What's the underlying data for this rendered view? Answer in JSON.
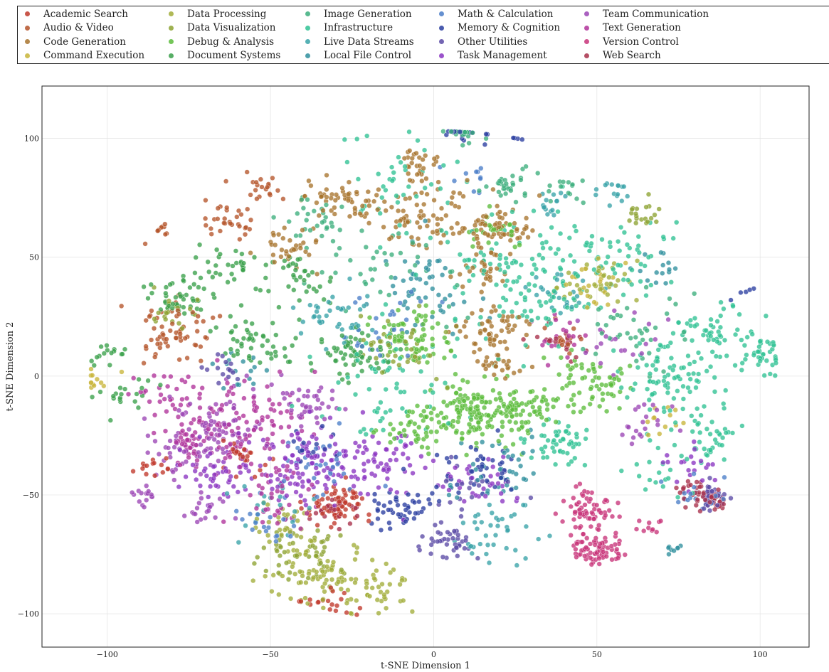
{
  "chart_data": {
    "type": "scatter",
    "title": "",
    "xlabel": "t-SNE Dimension 1",
    "ylabel": "t-SNE Dimension 2",
    "xlim": [
      -120,
      115
    ],
    "ylim": [
      -114,
      122
    ],
    "xticks": [
      -100,
      -50,
      0,
      50,
      100
    ],
    "yticks": [
      -100,
      -50,
      0,
      50,
      100
    ],
    "grid": true,
    "legend_position": "top",
    "series": [
      {
        "name": "Academic Search",
        "color": "#c0392b",
        "clusters": [
          {
            "x": -30,
            "y": -55,
            "s": 5,
            "n": 70
          },
          {
            "x": -58,
            "y": -35,
            "s": 4,
            "n": 25
          },
          {
            "x": -33,
            "y": -97,
            "s": 4,
            "n": 20
          },
          {
            "x": -85,
            "y": -38,
            "s": 3,
            "n": 15
          }
        ]
      },
      {
        "name": "Audio & Video",
        "color": "#b5542a",
        "clusters": [
          {
            "x": -78,
            "y": 18,
            "s": 6,
            "n": 60
          },
          {
            "x": -63,
            "y": 65,
            "s": 4,
            "n": 30
          },
          {
            "x": -52,
            "y": 78,
            "s": 3,
            "n": 20
          },
          {
            "x": -85,
            "y": 62,
            "s": 2,
            "n": 10
          },
          {
            "x": 40,
            "y": 15,
            "s": 3,
            "n": 15
          }
        ]
      },
      {
        "name": "Code Generation",
        "color": "#a8742e",
        "clusters": [
          {
            "x": -5,
            "y": 68,
            "s": 7,
            "n": 80
          },
          {
            "x": 20,
            "y": 62,
            "s": 5,
            "n": 60
          },
          {
            "x": 20,
            "y": 18,
            "s": 6,
            "n": 60
          },
          {
            "x": -5,
            "y": 90,
            "s": 3,
            "n": 25
          },
          {
            "x": -25,
            "y": 72,
            "s": 5,
            "n": 35
          },
          {
            "x": 15,
            "y": 45,
            "s": 5,
            "n": 30
          },
          {
            "x": 20,
            "y": 5,
            "s": 3,
            "n": 20
          },
          {
            "x": -45,
            "y": 55,
            "s": 5,
            "n": 35
          },
          {
            "x": -35,
            "y": 75,
            "s": 3,
            "n": 20
          }
        ]
      },
      {
        "name": "Command Execution",
        "color": "#c8b53a",
        "clusters": [
          {
            "x": -105,
            "y": -1,
            "s": 3,
            "n": 12
          },
          {
            "x": 48,
            "y": 40,
            "s": 5,
            "n": 20
          },
          {
            "x": 70,
            "y": -20,
            "s": 4,
            "n": 12
          }
        ]
      },
      {
        "name": "Data Processing",
        "color": "#a2ad3a",
        "clusters": [
          {
            "x": -35,
            "y": -85,
            "s": 7,
            "n": 90
          },
          {
            "x": -15,
            "y": -90,
            "s": 5,
            "n": 30
          },
          {
            "x": 50,
            "y": 40,
            "s": 5,
            "n": 40
          },
          {
            "x": -45,
            "y": -62,
            "s": 5,
            "n": 30
          }
        ]
      },
      {
        "name": "Data Visualization",
        "color": "#8da332",
        "clusters": [
          {
            "x": -38,
            "y": -75,
            "s": 6,
            "n": 50
          },
          {
            "x": -10,
            "y": 15,
            "s": 7,
            "n": 40
          },
          {
            "x": 65,
            "y": 68,
            "s": 3,
            "n": 20
          },
          {
            "x": -80,
            "y": 28,
            "s": 4,
            "n": 20
          }
        ]
      },
      {
        "name": "Debug & Analysis",
        "color": "#5cbc3c",
        "clusters": [
          {
            "x": 12,
            "y": -15,
            "s": 7,
            "n": 150
          },
          {
            "x": 27,
            "y": -13,
            "s": 5,
            "n": 60
          },
          {
            "x": 48,
            "y": -2,
            "s": 6,
            "n": 70
          },
          {
            "x": -6,
            "y": 17,
            "s": 6,
            "n": 70
          },
          {
            "x": -8,
            "y": -22,
            "s": 5,
            "n": 40
          },
          {
            "x": 20,
            "y": 62,
            "s": 4,
            "n": 25
          }
        ]
      },
      {
        "name": "Document Systems",
        "color": "#3aa04a",
        "clusters": [
          {
            "x": -25,
            "y": 8,
            "s": 6,
            "n": 60
          },
          {
            "x": -78,
            "y": 32,
            "s": 5,
            "n": 40
          },
          {
            "x": -100,
            "y": 10,
            "s": 3,
            "n": 15
          },
          {
            "x": -95,
            "y": -8,
            "s": 4,
            "n": 20
          },
          {
            "x": -55,
            "y": 15,
            "s": 7,
            "n": 50
          },
          {
            "x": -65,
            "y": 45,
            "s": 6,
            "n": 40
          },
          {
            "x": -40,
            "y": 40,
            "s": 6,
            "n": 35
          }
        ]
      },
      {
        "name": "Image Generation",
        "color": "#3cae7c",
        "clusters": [
          {
            "x": 22,
            "y": 80,
            "s": 4,
            "n": 30
          },
          {
            "x": 10,
            "y": 103,
            "s": 3,
            "n": 20
          },
          {
            "x": -35,
            "y": 68,
            "s": 5,
            "n": 30
          },
          {
            "x": 40,
            "y": 80,
            "s": 3,
            "n": 15
          },
          {
            "x": -10,
            "y": 45,
            "s": 10,
            "n": 40
          },
          {
            "x": 60,
            "y": 20,
            "s": 8,
            "n": 40
          }
        ]
      },
      {
        "name": "Infrastructure",
        "color": "#2fc294",
        "clusters": [
          {
            "x": 72,
            "y": 0,
            "s": 7,
            "n": 80
          },
          {
            "x": 85,
            "y": 20,
            "s": 6,
            "n": 50
          },
          {
            "x": 100,
            "y": 8,
            "s": 4,
            "n": 40
          },
          {
            "x": 85,
            "y": -25,
            "s": 5,
            "n": 40
          },
          {
            "x": 38,
            "y": -28,
            "s": 5,
            "n": 50
          },
          {
            "x": 30,
            "y": 40,
            "s": 14,
            "n": 150
          },
          {
            "x": -15,
            "y": -5,
            "s": 12,
            "n": 60
          },
          {
            "x": -10,
            "y": 85,
            "s": 10,
            "n": 40
          },
          {
            "x": 60,
            "y": 50,
            "s": 8,
            "n": 40
          },
          {
            "x": 70,
            "y": -40,
            "s": 6,
            "n": 20
          }
        ]
      },
      {
        "name": "Live Data Streams",
        "color": "#38a3a8",
        "clusters": [
          {
            "x": -30,
            "y": 25,
            "s": 6,
            "n": 40
          },
          {
            "x": 20,
            "y": -65,
            "s": 7,
            "n": 40
          },
          {
            "x": 38,
            "y": 35,
            "s": 5,
            "n": 25
          },
          {
            "x": 55,
            "y": 78,
            "s": 3,
            "n": 15
          },
          {
            "x": 35,
            "y": 72,
            "s": 3,
            "n": 15
          },
          {
            "x": -50,
            "y": -55,
            "s": 6,
            "n": 20
          }
        ]
      },
      {
        "name": "Local File Control",
        "color": "#2f8f9e",
        "clusters": [
          {
            "x": -5,
            "y": 35,
            "s": 8,
            "n": 50
          },
          {
            "x": 20,
            "y": -40,
            "s": 8,
            "n": 40
          },
          {
            "x": 70,
            "y": 45,
            "s": 4,
            "n": 15
          },
          {
            "x": -60,
            "y": 2,
            "s": 5,
            "n": 15
          },
          {
            "x": 75,
            "y": -72,
            "s": 2,
            "n": 8
          }
        ]
      },
      {
        "name": "Math & Calculation",
        "color": "#4a7dc8",
        "clusters": [
          {
            "x": -15,
            "y": 20,
            "s": 6,
            "n": 30
          },
          {
            "x": -35,
            "y": -35,
            "s": 6,
            "n": 30
          },
          {
            "x": 82,
            "y": -50,
            "s": 4,
            "n": 20
          },
          {
            "x": -50,
            "y": -62,
            "s": 5,
            "n": 20
          },
          {
            "x": 10,
            "y": 85,
            "s": 3,
            "n": 10
          }
        ]
      },
      {
        "name": "Memory & Cognition",
        "color": "#2a3ea0",
        "clusters": [
          {
            "x": -10,
            "y": -55,
            "s": 5,
            "n": 50
          },
          {
            "x": 15,
            "y": -40,
            "s": 6,
            "n": 40
          },
          {
            "x": 8,
            "y": 103,
            "s": 3,
            "n": 20
          },
          {
            "x": -38,
            "y": -30,
            "s": 4,
            "n": 15
          },
          {
            "x": 28,
            "y": 110,
            "s": 1,
            "n": 4
          },
          {
            "x": 95,
            "y": 35,
            "s": 2,
            "n": 5
          }
        ]
      },
      {
        "name": "Other Utilities",
        "color": "#5b4aa5",
        "clusters": [
          {
            "x": 5,
            "y": -70,
            "s": 4,
            "n": 40
          },
          {
            "x": 85,
            "y": -50,
            "s": 3,
            "n": 30
          },
          {
            "x": -65,
            "y": 2,
            "s": 3,
            "n": 15
          },
          {
            "x": 10,
            "y": -48,
            "s": 5,
            "n": 20
          }
        ]
      },
      {
        "name": "Task Management",
        "color": "#8a35c2",
        "clusters": [
          {
            "x": -40,
            "y": -38,
            "s": 8,
            "n": 90
          },
          {
            "x": -18,
            "y": -38,
            "s": 8,
            "n": 80
          },
          {
            "x": -65,
            "y": -42,
            "s": 6,
            "n": 50
          },
          {
            "x": 15,
            "y": -45,
            "s": 6,
            "n": 30
          },
          {
            "x": 80,
            "y": -40,
            "s": 5,
            "n": 20
          }
        ]
      },
      {
        "name": "Team Communication",
        "color": "#9b45b5",
        "clusters": [
          {
            "x": -62,
            "y": -20,
            "s": 8,
            "n": 70
          },
          {
            "x": -78,
            "y": -30,
            "s": 6,
            "n": 40
          },
          {
            "x": -38,
            "y": -10,
            "s": 5,
            "n": 40
          },
          {
            "x": -90,
            "y": -50,
            "s": 3,
            "n": 15
          },
          {
            "x": -72,
            "y": -55,
            "s": 4,
            "n": 20
          },
          {
            "x": 65,
            "y": -20,
            "s": 5,
            "n": 20
          },
          {
            "x": 55,
            "y": 15,
            "s": 6,
            "n": 20
          }
        ]
      },
      {
        "name": "Text Generation",
        "color": "#b0329a",
        "clusters": [
          {
            "x": -58,
            "y": -20,
            "s": 9,
            "n": 100
          },
          {
            "x": -75,
            "y": -28,
            "s": 5,
            "n": 40
          },
          {
            "x": -80,
            "y": -10,
            "s": 6,
            "n": 30
          },
          {
            "x": -45,
            "y": -50,
            "s": 7,
            "n": 40
          },
          {
            "x": 40,
            "y": 15,
            "s": 5,
            "n": 20
          }
        ]
      },
      {
        "name": "Version Control",
        "color": "#c8347a",
        "clusters": [
          {
            "x": 50,
            "y": -72,
            "s": 4,
            "n": 80
          },
          {
            "x": 47,
            "y": -55,
            "s": 4,
            "n": 60
          },
          {
            "x": 65,
            "y": -63,
            "s": 2,
            "n": 10
          }
        ]
      },
      {
        "name": "Web Search",
        "color": "#a8304a",
        "clusters": [
          {
            "x": 85,
            "y": -52,
            "s": 3,
            "n": 40
          },
          {
            "x": 40,
            "y": 15,
            "s": 4,
            "n": 20
          },
          {
            "x": -30,
            "y": -58,
            "s": 4,
            "n": 20
          },
          {
            "x": 78,
            "y": -48,
            "s": 3,
            "n": 15
          }
        ]
      }
    ]
  }
}
